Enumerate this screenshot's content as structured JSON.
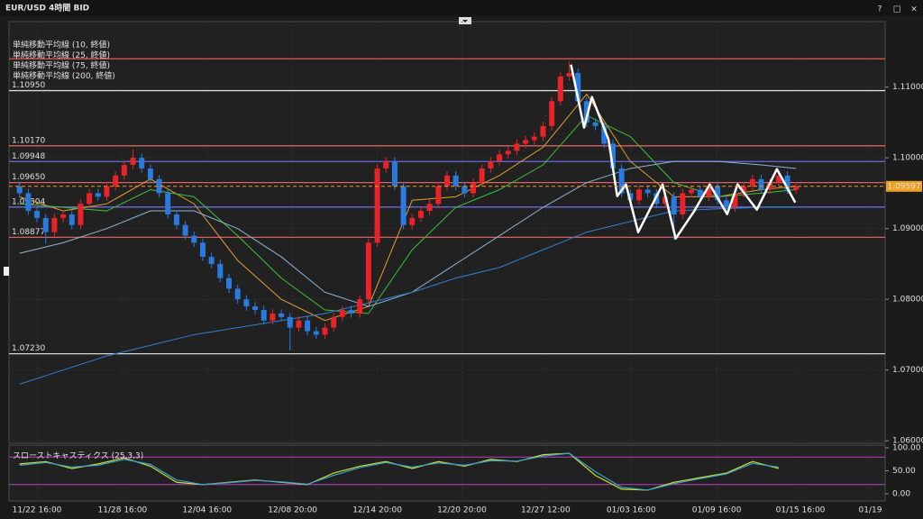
{
  "window": {
    "buttons": [
      "?",
      "□",
      "×"
    ]
  },
  "chart_data": {
    "type": "candlestick",
    "title": "EUR/USD 4時間 BID",
    "up_color": "#e8232a",
    "down_color": "#2a7be0",
    "grid": true,
    "x": [
      1,
      2,
      3,
      4,
      5,
      6,
      7,
      8,
      9,
      10,
      11,
      12,
      13,
      14,
      15,
      16,
      17,
      18,
      19,
      20,
      21,
      22,
      23,
      24,
      25,
      26,
      27,
      28,
      29,
      30,
      31,
      32,
      33,
      34,
      35,
      36,
      37,
      38,
      39,
      40,
      41,
      42,
      43,
      44,
      45,
      46,
      47,
      48,
      49,
      50,
      51,
      52,
      53,
      54,
      55,
      56,
      57,
      58,
      59,
      60,
      61,
      62,
      63,
      64,
      65,
      66,
      67,
      68,
      69,
      70,
      71,
      72,
      73,
      74,
      75,
      76,
      77,
      78,
      79,
      80,
      81,
      82,
      83,
      84,
      85,
      86,
      87,
      88,
      89,
      90
    ],
    "open": [
      1.096,
      1.095,
      1.0925,
      1.0915,
      1.0895,
      1.0915,
      1.092,
      1.0905,
      1.0935,
      1.095,
      1.0945,
      1.096,
      1.0975,
      1.099,
      1.1,
      1.0985,
      1.097,
      1.095,
      1.092,
      1.0905,
      1.089,
      1.088,
      1.086,
      1.085,
      1.083,
      1.0815,
      1.08,
      1.079,
      1.0785,
      1.077,
      1.078,
      1.0775,
      1.076,
      1.077,
      1.0755,
      1.075,
      1.076,
      1.0775,
      1.0785,
      1.078,
      1.08,
      1.088,
      1.0985,
      1.0995,
      1.096,
      1.0905,
      1.0915,
      1.0925,
      1.0935,
      1.096,
      1.0975,
      1.096,
      1.095,
      1.0965,
      1.0985,
      1.0995,
      1.1005,
      1.101,
      1.102,
      1.1025,
      1.103,
      1.1045,
      1.108,
      1.1115,
      1.112,
      1.108,
      1.105,
      1.1045,
      1.102,
      1.0985,
      1.095,
      1.094,
      1.0955,
      1.095,
      1.0935,
      1.0945,
      1.092,
      1.095,
      1.0955,
      1.0945,
      1.096,
      1.094,
      1.093,
      1.095,
      1.096,
      1.097,
      1.0955,
      1.0965,
      1.0975,
      1.0955
    ],
    "high": [
      1.0966,
      1.0956,
      1.0931,
      1.0921,
      1.0921,
      1.0926,
      1.0926,
      1.0941,
      1.0956,
      1.0956,
      1.0966,
      1.0981,
      1.0996,
      1.1012,
      1.1006,
      1.0991,
      1.0976,
      1.0956,
      1.0926,
      1.0911,
      1.0896,
      1.0886,
      1.0866,
      1.0856,
      1.0836,
      1.0821,
      1.0806,
      1.0796,
      1.0791,
      1.0786,
      1.0786,
      1.0781,
      1.0776,
      1.0776,
      1.0761,
      1.0766,
      1.0781,
      1.0791,
      1.0791,
      1.0806,
      1.0886,
      1.0991,
      1.1001,
      1.1001,
      1.0966,
      1.0921,
      1.0931,
      1.0941,
      1.0966,
      1.0981,
      1.0981,
      1.0966,
      1.0971,
      1.0991,
      1.1001,
      1.1011,
      1.1016,
      1.1026,
      1.1031,
      1.1036,
      1.1051,
      1.1086,
      1.1121,
      1.1136,
      1.1126,
      1.1086,
      1.1056,
      1.1051,
      1.1026,
      1.0991,
      1.0956,
      1.0961,
      1.0961,
      1.0956,
      1.0951,
      1.0951,
      1.0956,
      1.0961,
      1.0961,
      1.0966,
      1.0966,
      1.0946,
      1.0956,
      1.0966,
      1.0976,
      1.0976,
      1.0971,
      1.0981,
      1.0981,
      1.0966
    ],
    "low": [
      1.0944,
      1.0919,
      1.0909,
      1.0878,
      1.0889,
      1.0909,
      1.0899,
      1.0899,
      1.0929,
      1.0939,
      1.0939,
      1.0954,
      1.0969,
      1.0984,
      1.0979,
      1.0964,
      1.0944,
      1.0914,
      1.0899,
      1.0884,
      1.0874,
      1.0854,
      1.0844,
      1.0824,
      1.0809,
      1.0794,
      1.0784,
      1.0779,
      1.0764,
      1.0764,
      1.0769,
      1.0728,
      1.0754,
      1.0749,
      1.0744,
      1.0744,
      1.0754,
      1.0769,
      1.0774,
      1.0774,
      1.0794,
      1.0874,
      1.0979,
      1.0954,
      1.0899,
      1.0899,
      1.0909,
      1.0919,
      1.0929,
      1.0954,
      1.0954,
      1.0944,
      1.0944,
      1.0959,
      1.0979,
      1.0989,
      1.0999,
      1.1004,
      1.1014,
      1.1019,
      1.1024,
      1.1039,
      1.1074,
      1.1109,
      1.1074,
      1.1044,
      1.1039,
      1.1014,
      1.0979,
      1.0944,
      1.0934,
      1.0934,
      1.0944,
      1.0929,
      1.0929,
      1.0884,
      1.0914,
      1.0944,
      1.0939,
      1.0939,
      1.0934,
      1.0924,
      1.0924,
      1.0944,
      1.0954,
      1.0949,
      1.0949,
      1.0959,
      1.0949,
      1.0949
    ],
    "close": [
      1.095,
      1.0925,
      1.0915,
      1.0895,
      1.0915,
      1.092,
      1.0905,
      1.0935,
      1.095,
      1.0945,
      1.096,
      1.0975,
      1.099,
      1.1,
      1.0985,
      1.097,
      1.095,
      1.092,
      1.0905,
      1.089,
      1.088,
      1.086,
      1.085,
      1.083,
      1.0815,
      1.08,
      1.079,
      1.0785,
      1.077,
      1.078,
      1.0775,
      1.076,
      1.077,
      1.0755,
      1.075,
      1.076,
      1.0775,
      1.0785,
      1.078,
      1.08,
      1.088,
      1.0985,
      1.0995,
      1.096,
      1.0905,
      1.0915,
      1.0925,
      1.0935,
      1.096,
      1.0975,
      1.096,
      1.095,
      1.0965,
      1.0985,
      1.0995,
      1.1005,
      1.101,
      1.102,
      1.1025,
      1.103,
      1.1045,
      1.108,
      1.1115,
      1.112,
      1.108,
      1.105,
      1.1045,
      1.102,
      1.0985,
      1.095,
      1.094,
      1.0955,
      1.095,
      1.0935,
      1.0945,
      1.092,
      1.095,
      1.0955,
      1.0945,
      1.096,
      1.094,
      1.093,
      1.095,
      1.096,
      1.097,
      1.0955,
      1.0965,
      1.0975,
      1.0955,
      1.096
    ],
    "xlim": [
      0,
      100
    ],
    "xticks": [
      {
        "value": 3,
        "label": "11/22 16:00"
      },
      {
        "value": 12.8,
        "label": "11/28 16:00"
      },
      {
        "value": 22.5,
        "label": "12/04 16:00"
      },
      {
        "value": 32.3,
        "label": "12/08 20:00"
      },
      {
        "value": 42,
        "label": "12/14 20:00"
      },
      {
        "value": 51.7,
        "label": "12/20 20:00"
      },
      {
        "value": 61.3,
        "label": "12/27 12:00"
      },
      {
        "value": 71.1,
        "label": "01/03 16:00"
      },
      {
        "value": 80.9,
        "label": "01/09 16:00"
      },
      {
        "value": 90.5,
        "label": "01/15 16:00"
      },
      {
        "value": 98.5,
        "label": "01/19"
      }
    ],
    "ylim": [
      1.0599,
      1.119
    ],
    "yticks": [
      {
        "value": 1.06,
        "label": "1.06000"
      },
      {
        "value": 1.07,
        "label": "1.07000"
      },
      {
        "value": 1.08,
        "label": "1.08000"
      },
      {
        "value": 1.09,
        "label": "1.09000"
      },
      {
        "value": 1.1,
        "label": "1.10000"
      },
      {
        "value": 1.11,
        "label": "1.11000"
      }
    ],
    "indicators": [
      {
        "name": "単純移動平均線 (10, 終値)",
        "color": "#e0a030",
        "x": [
          1,
          6,
          11,
          16,
          21,
          26,
          31,
          36,
          41,
          46,
          51,
          56,
          61,
          66,
          71,
          76,
          81,
          86,
          90
        ],
        "values": [
          1.0945,
          1.0925,
          1.0935,
          1.097,
          1.0935,
          1.0855,
          1.08,
          1.077,
          1.079,
          1.094,
          1.0945,
          1.0975,
          1.1015,
          1.109,
          1.0995,
          1.0945,
          1.0945,
          1.0955,
          1.096
        ]
      },
      {
        "name": "単純移動平均線 (25, 終値)",
        "color": "#3cc03c",
        "x": [
          1,
          6,
          11,
          16,
          21,
          26,
          31,
          36,
          41,
          46,
          51,
          56,
          61,
          66,
          71,
          76,
          81,
          86,
          90
        ],
        "values": [
          1.0935,
          1.093,
          1.0925,
          1.0955,
          1.0945,
          1.089,
          1.083,
          1.0785,
          1.078,
          1.087,
          1.093,
          1.0955,
          1.099,
          1.106,
          1.103,
          1.0965,
          1.0945,
          1.095,
          1.0955
        ]
      },
      {
        "name": "単純移動平均線 (75, 終値)",
        "color": "#8ab4d8",
        "x": [
          1,
          6,
          11,
          16,
          21,
          26,
          31,
          36,
          41,
          46,
          51,
          56,
          61,
          66,
          71,
          76,
          81,
          86,
          90
        ],
        "values": [
          1.0865,
          1.088,
          1.09,
          1.0925,
          1.0925,
          1.09,
          1.086,
          1.081,
          1.079,
          1.081,
          1.085,
          1.089,
          1.093,
          1.0965,
          1.0985,
          1.0995,
          1.0995,
          1.099,
          1.0985
        ]
      },
      {
        "name": "単純移動平均線 (200, 終値)",
        "color": "#2f7fd0",
        "x": [
          1,
          6,
          11,
          16,
          21,
          26,
          31,
          36,
          41,
          46,
          51,
          56,
          61,
          66,
          71,
          76,
          81,
          86,
          90
        ],
        "values": [
          1.068,
          1.07,
          1.072,
          1.0735,
          1.075,
          1.076,
          1.077,
          1.078,
          1.0795,
          1.081,
          1.083,
          1.0845,
          1.087,
          1.0895,
          1.091,
          1.0925,
          1.0928,
          1.093,
          1.093
        ]
      }
    ],
    "levels": [
      {
        "value": 1.114,
        "color": "#e05a5a"
      },
      {
        "value": 1.1095,
        "label": "1.10950",
        "color": "#d8d8d8"
      },
      {
        "value": 1.1017,
        "label": "1.10170",
        "color": "#d86060"
      },
      {
        "value": 1.09948,
        "label": "1.09948",
        "color": "#6a6ad8"
      },
      {
        "value": 1.0965,
        "label": "1.09650",
        "color": "#d86060"
      },
      {
        "value": 1.09304,
        "label": "1.09304",
        "color": "#6a6ad8"
      },
      {
        "value": 1.08877,
        "label": "1.08877",
        "color": "#d86060"
      },
      {
        "value": 1.0723,
        "label": "1.07230",
        "color": "#d8d8d8"
      }
    ],
    "current_price": {
      "value": 1.09597,
      "label": "1.09597",
      "color": "#f0a020"
    },
    "annotation_line": {
      "color": "#ffffff",
      "x": [
        64.2,
        65.7,
        66.6,
        68.5,
        69.5,
        70.5,
        71.9,
        74.7,
        76.2,
        78.3,
        80.1,
        82.1,
        83.3,
        85.5,
        87.8,
        89.9
      ],
      "values": [
        1.11318,
        1.10427,
        1.1086,
        1.10261,
        1.09459,
        1.09624,
        1.08949,
        1.09624,
        1.0886,
        1.09242,
        1.09624,
        1.09204,
        1.09624,
        1.09268,
        1.09841,
        1.09369
      ]
    },
    "stochastic": {
      "name": "スローストキャスティクス (25,3,3)",
      "ylim": [
        0,
        100
      ],
      "yticks": [
        {
          "value": 0,
          "label": "0.00"
        },
        {
          "value": 50,
          "label": "50.00"
        },
        {
          "value": 100,
          "label": "100.00"
        }
      ],
      "levels": [
        80,
        20
      ],
      "level_color": "#c03cc0",
      "x": [
        1,
        4,
        7,
        10,
        13,
        16,
        19,
        22,
        25,
        28,
        31,
        34,
        37,
        40,
        43,
        46,
        49,
        52,
        55,
        58,
        61,
        64,
        67,
        70,
        73,
        76,
        79,
        82,
        85,
        88
      ],
      "series": [
        {
          "color": "#c8e030",
          "values": [
            65,
            70,
            55,
            65,
            78,
            60,
            25,
            20,
            25,
            30,
            25,
            20,
            45,
            60,
            70,
            55,
            70,
            60,
            75,
            70,
            85,
            88,
            40,
            10,
            8,
            25,
            35,
            45,
            70,
            55
          ]
        },
        {
          "color": "#3aa0d0",
          "values": [
            62,
            68,
            58,
            62,
            75,
            64,
            30,
            20,
            24,
            29,
            26,
            21,
            40,
            57,
            68,
            58,
            67,
            62,
            72,
            71,
            82,
            88,
            48,
            14,
            8,
            22,
            33,
            43,
            66,
            58
          ]
        }
      ]
    }
  }
}
